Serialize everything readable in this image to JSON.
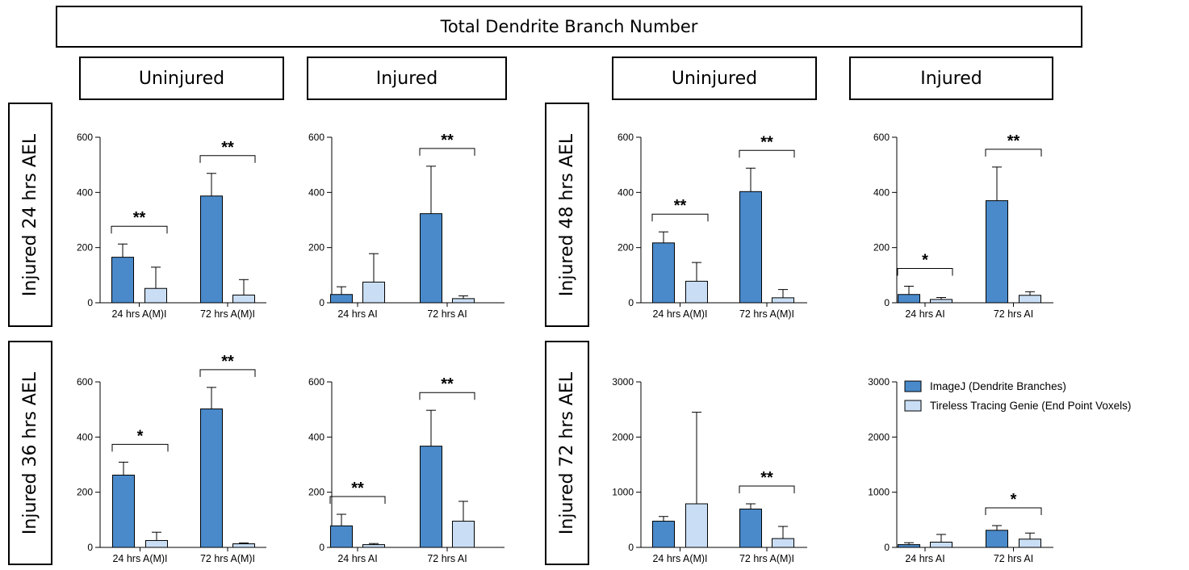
{
  "header": {
    "title": "Total Dendrite Branch Number",
    "columns": [
      "Uninjured",
      "Injured",
      "Uninjured",
      "Injured"
    ],
    "rows": [
      "Injured 24 hrs AEL",
      "Injured 36 hrs AEL",
      "Injured 48 hrs AEL",
      "Injured 72 hrs AEL"
    ]
  },
  "legend": {
    "items": [
      {
        "label": "ImageJ (Dendrite Branches)",
        "color": "#4a8acb"
      },
      {
        "label": "Tireless Tracing Genie (End Point Voxels)",
        "color": "#c9def5"
      }
    ]
  },
  "chart_data": [
    {
      "type": "bar",
      "panel": "Injured 24 hrs AEL / Uninjured",
      "categories": [
        "24 hrs A(M)I",
        "72 hrs A(M)I"
      ],
      "ylim": [
        0,
        600
      ],
      "yticks": [
        0,
        200,
        400,
        600
      ],
      "series": [
        {
          "name": "ImageJ (Dendrite Branches)",
          "values": [
            165,
            387
          ],
          "errors": [
            48,
            82
          ]
        },
        {
          "name": "Tireless Tracing Genie (End Point Voxels)",
          "values": [
            52,
            28
          ],
          "errors": [
            77,
            56
          ]
        }
      ],
      "significance": [
        "**",
        "**"
      ]
    },
    {
      "type": "bar",
      "panel": "Injured 24 hrs AEL / Injured",
      "categories": [
        "24 hrs AI",
        "72 hrs AI"
      ],
      "ylim": [
        0,
        600
      ],
      "yticks": [
        0,
        200,
        400,
        600
      ],
      "series": [
        {
          "name": "ImageJ (Dendrite Branches)",
          "values": [
            30,
            323
          ],
          "errors": [
            28,
            172
          ]
        },
        {
          "name": "Tireless Tracing Genie (End Point Voxels)",
          "values": [
            75,
            15
          ],
          "errors": [
            103,
            10
          ]
        }
      ],
      "significance": [
        "",
        "**"
      ]
    },
    {
      "type": "bar",
      "panel": "Injured 48 hrs AEL / Uninjured",
      "categories": [
        "24 hrs A(M)I",
        "72 hrs A(M)I"
      ],
      "ylim": [
        0,
        600
      ],
      "yticks": [
        0,
        200,
        400,
        600
      ],
      "series": [
        {
          "name": "ImageJ (Dendrite Branches)",
          "values": [
            217,
            403
          ],
          "errors": [
            40,
            85
          ]
        },
        {
          "name": "Tireless Tracing Genie (End Point Voxels)",
          "values": [
            78,
            18
          ],
          "errors": [
            68,
            30
          ]
        }
      ],
      "significance": [
        "**",
        "**"
      ]
    },
    {
      "type": "bar",
      "panel": "Injured 48 hrs AEL / Injured",
      "categories": [
        "24 hrs AI",
        "72 hrs AI"
      ],
      "ylim": [
        0,
        600
      ],
      "yticks": [
        0,
        200,
        400,
        600
      ],
      "series": [
        {
          "name": "ImageJ (Dendrite Branches)",
          "values": [
            30,
            370
          ],
          "errors": [
            30,
            122
          ]
        },
        {
          "name": "Tireless Tracing Genie (End Point Voxels)",
          "values": [
            12,
            27
          ],
          "errors": [
            7,
            13
          ]
        }
      ],
      "significance": [
        "*",
        "**"
      ]
    },
    {
      "type": "bar",
      "panel": "Injured 36 hrs AEL / Uninjured",
      "categories": [
        "24 hrs A(M)I",
        "72 hrs A(M)I"
      ],
      "ylim": [
        0,
        600
      ],
      "yticks": [
        0,
        200,
        400,
        600
      ],
      "series": [
        {
          "name": "ImageJ (Dendrite Branches)",
          "values": [
            262,
            502
          ],
          "errors": [
            47,
            78
          ]
        },
        {
          "name": "Tireless Tracing Genie (End Point Voxels)",
          "values": [
            25,
            13
          ],
          "errors": [
            30,
            3
          ]
        }
      ],
      "significance": [
        "*",
        "**"
      ]
    },
    {
      "type": "bar",
      "panel": "Injured 36 hrs AEL / Injured",
      "categories": [
        "24 hrs AI",
        "72 hrs AI"
      ],
      "ylim": [
        0,
        600
      ],
      "yticks": [
        0,
        200,
        400,
        600
      ],
      "series": [
        {
          "name": "ImageJ (Dendrite Branches)",
          "values": [
            78,
            367
          ],
          "errors": [
            42,
            130
          ]
        },
        {
          "name": "Tireless Tracing Genie (End Point Voxels)",
          "values": [
            10,
            95
          ],
          "errors": [
            4,
            72
          ]
        }
      ],
      "significance": [
        "**",
        "**"
      ]
    },
    {
      "type": "bar",
      "panel": "Injured 72 hrs AEL / Uninjured",
      "categories": [
        "24 hrs A(M)I",
        "72 hrs A(M)I"
      ],
      "ylim": [
        0,
        3000
      ],
      "yticks": [
        0,
        1000,
        2000,
        3000
      ],
      "series": [
        {
          "name": "ImageJ (Dendrite Branches)",
          "values": [
            475,
            695
          ],
          "errors": [
            85,
            95
          ]
        },
        {
          "name": "Tireless Tracing Genie (End Point Voxels)",
          "values": [
            790,
            160
          ],
          "errors": [
            1660,
            220
          ]
        }
      ],
      "significance": [
        "",
        "**"
      ]
    },
    {
      "type": "bar",
      "panel": "Injured 72 hrs AEL / Injured",
      "categories": [
        "24 hrs AI",
        "72 hrs AI"
      ],
      "ylim": [
        0,
        3000
      ],
      "yticks": [
        0,
        1000,
        2000,
        3000
      ],
      "series": [
        {
          "name": "ImageJ (Dendrite Branches)",
          "values": [
            50,
            310
          ],
          "errors": [
            35,
            85
          ]
        },
        {
          "name": "Tireless Tracing Genie (End Point Voxels)",
          "values": [
            95,
            150
          ],
          "errors": [
            140,
            110
          ]
        }
      ],
      "significance": [
        "",
        "*"
      ]
    }
  ]
}
